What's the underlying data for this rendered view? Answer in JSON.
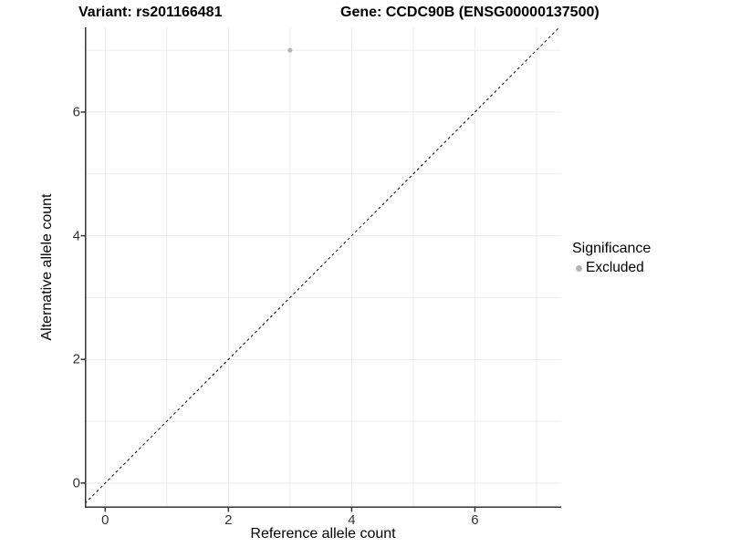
{
  "header": {
    "variant_title": "Variant: rs201166481",
    "gene_title": "Gene: CCDC90B (ENSG00000137500)"
  },
  "chart_data": {
    "type": "scatter",
    "xlabel": "Reference allele count",
    "ylabel": "Alternative allele count",
    "x_ticks": [
      0,
      2,
      4,
      6
    ],
    "y_ticks": [
      0,
      2,
      4,
      6
    ],
    "xlim": [
      -0.33,
      7.4
    ],
    "ylim": [
      -0.4,
      7.37
    ],
    "grid_positions": [
      0,
      1,
      2,
      3,
      4,
      5,
      6,
      7
    ],
    "grid": true,
    "points": [
      {
        "x": 3,
        "y": 7,
        "series": "Excluded"
      }
    ],
    "identity_line": {
      "style": "dashed",
      "slope": 1,
      "intercept": 0
    },
    "legend": {
      "title": "Significance",
      "position": "right",
      "items": [
        {
          "label": "Excluded",
          "color": "#b5b5b5"
        }
      ]
    },
    "colors": {
      "grid": "#ebebeb",
      "axis": "#333333",
      "point": "#b5b5b5",
      "identity_line": "#000000"
    }
  }
}
